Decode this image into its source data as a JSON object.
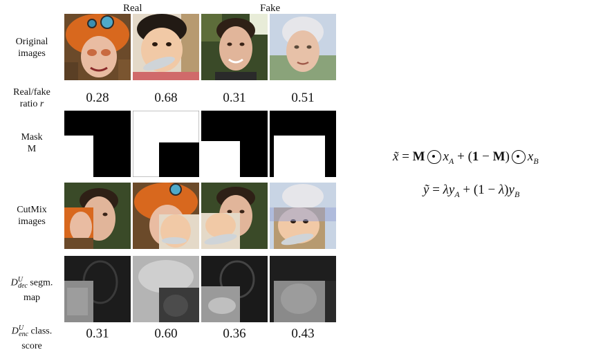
{
  "headers": {
    "real": "Real",
    "fake": "Fake"
  },
  "row_labels": {
    "original_line1": "Original",
    "original_line2": "images",
    "ratio_line1": "Real/fake",
    "ratio_line2": "ratio r",
    "mask_line1": "Mask",
    "mask_line2": "M",
    "cutmix_line1": "CutMix",
    "cutmix_line2": "images",
    "segm_line1": "D^U_dec segm.",
    "segm_line2": "map",
    "class_line1": "D^U_enc class.",
    "class_line2": "score"
  },
  "ratios": [
    "0.28",
    "0.68",
    "0.31",
    "0.51"
  ],
  "scores": [
    "0.31",
    "0.60",
    "0.36",
    "0.43"
  ],
  "equations": {
    "x_line": "x̃ = M ⊙ x_A + (1 − M) ⊙ x_B",
    "y_line": "ỹ = λy_A + (1 − λ)y_B"
  }
}
